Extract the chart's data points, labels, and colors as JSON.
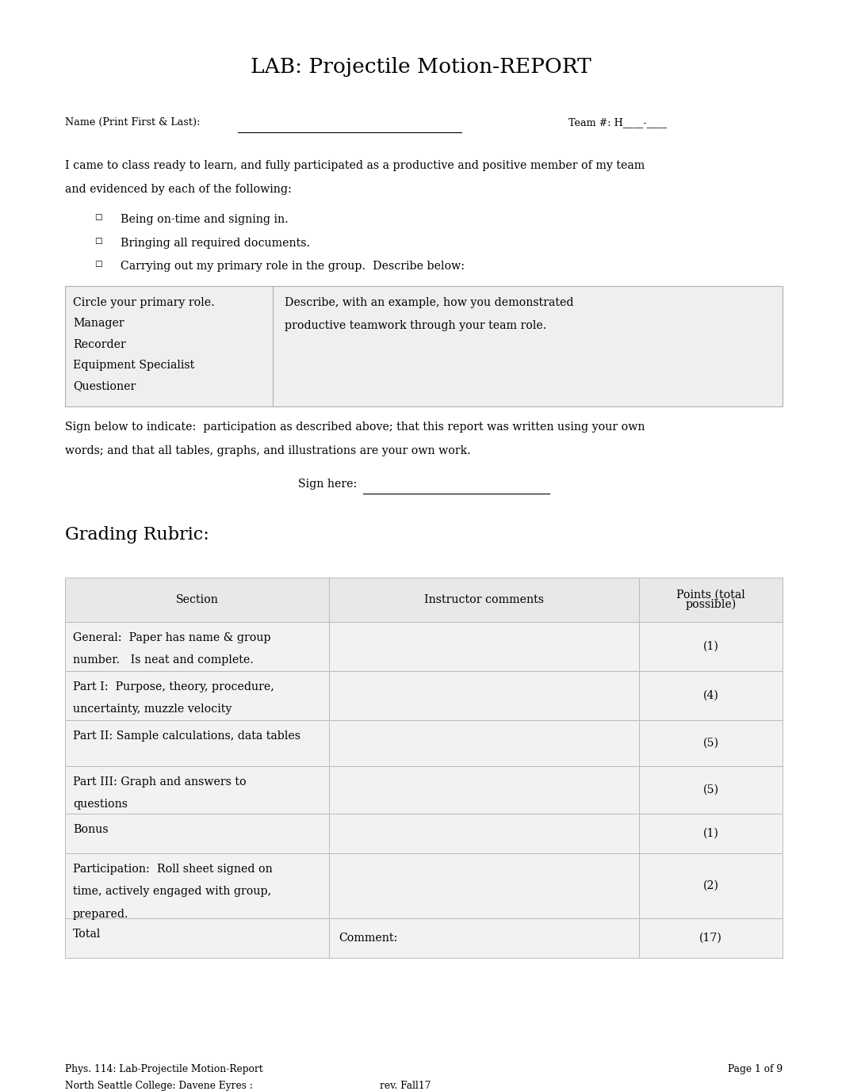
{
  "title": "LAB: Projectile Motion-REPORT",
  "name_label": "Name (Print First & Last):",
  "team_label": "Team #: H____-____",
  "intro_text_line1": "I came to class ready to learn, and fully participated as a productive and positive member of my team",
  "intro_text_line2": "and evidenced by each of the following:",
  "bullets": [
    "Being on-time and signing in.",
    "Bringing all required documents.",
    "Carrying out my primary role in the group.  Describe below:"
  ],
  "box_left_items": [
    "Circle your primary role.",
    "Manager",
    "Recorder",
    "Equipment Specialist",
    "Questioner"
  ],
  "box_right_line1": "Describe, with an example, how you demonstrated",
  "box_right_line2": "productive teamwork through your team role.",
  "sign_text_line1": "Sign below to indicate:  participation as described above; that this report was written using your own",
  "sign_text_line2": "words; and that all tables, graphs, and illustrations are your own work.",
  "sign_here": "Sign here: ",
  "grading_title": "Grading Rubric:",
  "table_headers": [
    "Section",
    "Instructor comments",
    "Points (total\npossible)"
  ],
  "table_rows": [
    [
      "General:  Paper has name & group\nnumber.   Is neat and complete.",
      "",
      "(1)"
    ],
    [
      "Part I:  Purpose, theory, procedure,\nuncertainty, muzzle velocity",
      "",
      "(4)"
    ],
    [
      "Part II: Sample calculations, data tables",
      "",
      "(5)"
    ],
    [
      "Part III: Graph and answers to\nquestions",
      "",
      "(5)"
    ],
    [
      "Bonus",
      "",
      "(1)"
    ],
    [
      "Participation:  Roll sheet signed on\ntime, actively engaged with group,\nprepared.",
      "",
      "(2)"
    ],
    [
      "Total",
      "Comment:",
      "(17)"
    ]
  ],
  "footer_left1": "Phys. 114: Lab-Projectile Motion-Report",
  "footer_left2": "North Seattle College: Davene Eyres :",
  "footer_center": "rev. Fall17",
  "footer_right": "Page 1 of 9",
  "bg_color": "#ffffff",
  "text_color": "#000000",
  "box_bg": "#efefef",
  "table_header_bg": "#e8e8e8",
  "table_row_bg": "#f2f2f2",
  "table_row_alt_bg": "#ffffff",
  "table_border_color": "#bbbbbb"
}
